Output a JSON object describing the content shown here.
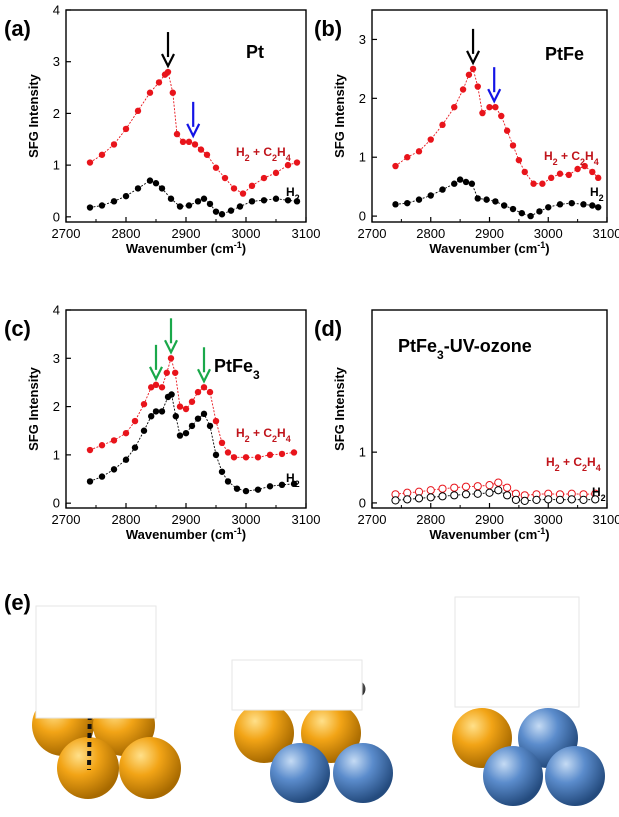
{
  "chart_data": [
    {
      "type": "line",
      "panel": "(a)",
      "sample_label": "Pt",
      "xlabel": "Wavenumber (cm",
      "xlabel_sup": "-1",
      "xlabel_end": ")",
      "ylabel": "SFG Intensity",
      "xlim": [
        2700,
        3100
      ],
      "ylim": [
        -0.1,
        4
      ],
      "xticks": [
        2700,
        2800,
        2900,
        3000,
        3100
      ],
      "yticks": [
        0,
        1,
        2,
        3,
        4
      ],
      "series": [
        {
          "name": "H2 + C2H4",
          "label_parts": [
            "H",
            "2",
            " + C",
            "2",
            "H",
            "4"
          ],
          "color": "#e8141b",
          "marker": "filled",
          "points": [
            [
              2740,
              1.05
            ],
            [
              2760,
              1.2
            ],
            [
              2780,
              1.4
            ],
            [
              2800,
              1.7
            ],
            [
              2820,
              2.05
            ],
            [
              2840,
              2.4
            ],
            [
              2855,
              2.6
            ],
            [
              2865,
              2.75
            ],
            [
              2870,
              2.8
            ],
            [
              2878,
              2.4
            ],
            [
              2885,
              1.6
            ],
            [
              2895,
              1.45
            ],
            [
              2905,
              1.45
            ],
            [
              2915,
              1.4
            ],
            [
              2925,
              1.3
            ],
            [
              2935,
              1.2
            ],
            [
              2950,
              0.95
            ],
            [
              2965,
              0.75
            ],
            [
              2980,
              0.55
            ],
            [
              2995,
              0.45
            ],
            [
              3010,
              0.6
            ],
            [
              3030,
              0.75
            ],
            [
              3050,
              0.85
            ],
            [
              3070,
              1.0
            ],
            [
              3085,
              1.05
            ]
          ]
        },
        {
          "name": "H2",
          "label_parts": [
            "H",
            "2"
          ],
          "color": "#000000",
          "marker": "filled",
          "points": [
            [
              2740,
              0.18
            ],
            [
              2760,
              0.22
            ],
            [
              2780,
              0.3
            ],
            [
              2800,
              0.4
            ],
            [
              2820,
              0.55
            ],
            [
              2840,
              0.7
            ],
            [
              2850,
              0.65
            ],
            [
              2860,
              0.55
            ],
            [
              2875,
              0.35
            ],
            [
              2890,
              0.2
            ],
            [
              2905,
              0.22
            ],
            [
              2920,
              0.3
            ],
            [
              2930,
              0.35
            ],
            [
              2940,
              0.25
            ],
            [
              2950,
              0.1
            ],
            [
              2960,
              0.05
            ],
            [
              2975,
              0.12
            ],
            [
              2990,
              0.2
            ],
            [
              3010,
              0.3
            ],
            [
              3030,
              0.32
            ],
            [
              3050,
              0.35
            ],
            [
              3070,
              0.32
            ],
            [
              3085,
              0.3
            ]
          ]
        }
      ],
      "arrows": [
        {
          "x": 2870,
          "y": 2.8,
          "color": "#000000"
        },
        {
          "x": 2912,
          "y": 1.45,
          "color": "#1414e6"
        }
      ]
    },
    {
      "type": "line",
      "panel": "(b)",
      "sample_label": "PtFe",
      "xlabel": "Wavenumber (cm",
      "xlabel_sup": "-1",
      "xlabel_end": ")",
      "ylabel": "SFG Intensity",
      "xlim": [
        2700,
        3100
      ],
      "ylim": [
        -0.1,
        3.5
      ],
      "xticks": [
        2700,
        2800,
        2900,
        3000,
        3100
      ],
      "yticks": [
        0,
        1,
        2,
        3
      ],
      "series": [
        {
          "name": "H2 + C2H4",
          "label_parts": [
            "H",
            "2",
            " + C",
            "2",
            "H",
            "4"
          ],
          "color": "#e8141b",
          "marker": "filled",
          "points": [
            [
              2740,
              0.85
            ],
            [
              2760,
              1.0
            ],
            [
              2780,
              1.1
            ],
            [
              2800,
              1.3
            ],
            [
              2820,
              1.55
            ],
            [
              2840,
              1.85
            ],
            [
              2855,
              2.15
            ],
            [
              2865,
              2.4
            ],
            [
              2872,
              2.5
            ],
            [
              2880,
              2.2
            ],
            [
              2888,
              1.75
            ],
            [
              2900,
              1.85
            ],
            [
              2910,
              1.85
            ],
            [
              2920,
              1.7
            ],
            [
              2930,
              1.45
            ],
            [
              2940,
              1.2
            ],
            [
              2950,
              0.95
            ],
            [
              2960,
              0.75
            ],
            [
              2975,
              0.55
            ],
            [
              2990,
              0.55
            ],
            [
              3005,
              0.65
            ],
            [
              3020,
              0.72
            ],
            [
              3035,
              0.7
            ],
            [
              3050,
              0.8
            ],
            [
              3062,
              0.85
            ],
            [
              3075,
              0.75
            ],
            [
              3085,
              0.65
            ]
          ]
        },
        {
          "name": "H2",
          "label_parts": [
            "H",
            "2"
          ],
          "color": "#000000",
          "marker": "filled",
          "points": [
            [
              2740,
              0.2
            ],
            [
              2760,
              0.22
            ],
            [
              2780,
              0.28
            ],
            [
              2800,
              0.35
            ],
            [
              2820,
              0.45
            ],
            [
              2840,
              0.55
            ],
            [
              2850,
              0.62
            ],
            [
              2860,
              0.58
            ],
            [
              2870,
              0.55
            ],
            [
              2880,
              0.3
            ],
            [
              2895,
              0.28
            ],
            [
              2910,
              0.25
            ],
            [
              2925,
              0.18
            ],
            [
              2940,
              0.12
            ],
            [
              2955,
              0.05
            ],
            [
              2970,
              0.0
            ],
            [
              2985,
              0.08
            ],
            [
              3000,
              0.15
            ],
            [
              3020,
              0.2
            ],
            [
              3040,
              0.22
            ],
            [
              3060,
              0.2
            ],
            [
              3075,
              0.18
            ],
            [
              3085,
              0.15
            ]
          ]
        }
      ],
      "arrows": [
        {
          "x": 2872,
          "y": 2.5,
          "color": "#000000"
        },
        {
          "x": 2908,
          "y": 1.85,
          "color": "#1414e6"
        }
      ]
    },
    {
      "type": "line",
      "panel": "(c)",
      "sample_label": "PtFe",
      "sample_sub": "3",
      "xlabel": "Wavenumber (cm",
      "xlabel_sup": "-1",
      "xlabel_end": ")",
      "ylabel": "SFG Intensity",
      "xlim": [
        2700,
        3100
      ],
      "ylim": [
        -0.1,
        4
      ],
      "xticks": [
        2700,
        2800,
        2900,
        3000,
        3100
      ],
      "yticks": [
        0,
        1,
        2,
        3,
        4
      ],
      "series": [
        {
          "name": "H2 + C2H4",
          "label_parts": [
            "H",
            "2",
            " + C",
            "2",
            "H",
            "4"
          ],
          "color": "#e8141b",
          "marker": "filled",
          "points": [
            [
              2740,
              1.1
            ],
            [
              2760,
              1.2
            ],
            [
              2780,
              1.3
            ],
            [
              2800,
              1.45
            ],
            [
              2815,
              1.7
            ],
            [
              2830,
              2.05
            ],
            [
              2842,
              2.4
            ],
            [
              2850,
              2.45
            ],
            [
              2860,
              2.4
            ],
            [
              2868,
              2.7
            ],
            [
              2875,
              3.0
            ],
            [
              2882,
              2.7
            ],
            [
              2890,
              2.0
            ],
            [
              2900,
              1.95
            ],
            [
              2910,
              2.1
            ],
            [
              2920,
              2.3
            ],
            [
              2930,
              2.4
            ],
            [
              2940,
              2.3
            ],
            [
              2950,
              1.7
            ],
            [
              2960,
              1.25
            ],
            [
              2970,
              1.05
            ],
            [
              2980,
              0.95
            ],
            [
              3000,
              0.95
            ],
            [
              3020,
              0.95
            ],
            [
              3040,
              1.0
            ],
            [
              3060,
              1.02
            ],
            [
              3080,
              1.05
            ]
          ]
        },
        {
          "name": "H2",
          "label_parts": [
            "H",
            "2"
          ],
          "color": "#000000",
          "marker": "filled",
          "points": [
            [
              2740,
              0.45
            ],
            [
              2760,
              0.55
            ],
            [
              2780,
              0.7
            ],
            [
              2800,
              0.9
            ],
            [
              2815,
              1.15
            ],
            [
              2830,
              1.5
            ],
            [
              2842,
              1.8
            ],
            [
              2850,
              1.9
            ],
            [
              2860,
              1.9
            ],
            [
              2870,
              2.2
            ],
            [
              2876,
              2.25
            ],
            [
              2883,
              1.8
            ],
            [
              2890,
              1.4
            ],
            [
              2900,
              1.45
            ],
            [
              2910,
              1.6
            ],
            [
              2920,
              1.75
            ],
            [
              2930,
              1.85
            ],
            [
              2940,
              1.6
            ],
            [
              2950,
              1.0
            ],
            [
              2960,
              0.65
            ],
            [
              2970,
              0.45
            ],
            [
              2985,
              0.3
            ],
            [
              3000,
              0.25
            ],
            [
              3020,
              0.28
            ],
            [
              3040,
              0.35
            ],
            [
              3060,
              0.38
            ],
            [
              3080,
              0.4
            ]
          ]
        }
      ],
      "arrows": [
        {
          "x": 2850,
          "y": 2.45,
          "color": "#1aa84a"
        },
        {
          "x": 2875,
          "y": 3.0,
          "color": "#1aa84a"
        },
        {
          "x": 2930,
          "y": 2.4,
          "color": "#1aa84a"
        }
      ]
    },
    {
      "type": "line",
      "panel": "(d)",
      "sample_label": "PtFe",
      "sample_sub": "3",
      "sample_rest": "-UV-ozone",
      "xlabel": "Wavenumber (cm",
      "xlabel_sup": "-1",
      "xlabel_end": ")",
      "ylabel": "SFG Intensity",
      "xlim": [
        2700,
        3100
      ],
      "ylim": [
        -0.1,
        3.8
      ],
      "xticks": [
        2700,
        2800,
        2900,
        3000,
        3100
      ],
      "yticks": [
        0,
        1
      ],
      "series": [
        {
          "name": "H2 + C2H4",
          "label_parts": [
            "H",
            "2",
            " + C",
            "2",
            "H",
            "4"
          ],
          "color": "#e8141b",
          "marker": "open",
          "points": [
            [
              2740,
              0.17
            ],
            [
              2760,
              0.2
            ],
            [
              2780,
              0.22
            ],
            [
              2800,
              0.25
            ],
            [
              2820,
              0.28
            ],
            [
              2840,
              0.3
            ],
            [
              2860,
              0.32
            ],
            [
              2880,
              0.33
            ],
            [
              2900,
              0.35
            ],
            [
              2915,
              0.4
            ],
            [
              2930,
              0.3
            ],
            [
              2945,
              0.18
            ],
            [
              2960,
              0.15
            ],
            [
              2980,
              0.17
            ],
            [
              3000,
              0.18
            ],
            [
              3020,
              0.17
            ],
            [
              3040,
              0.18
            ],
            [
              3060,
              0.17
            ],
            [
              3080,
              0.18
            ]
          ]
        },
        {
          "name": "H2",
          "label_parts": [
            "H",
            "2"
          ],
          "color": "#000000",
          "marker": "open",
          "points": [
            [
              2740,
              0.05
            ],
            [
              2760,
              0.07
            ],
            [
              2780,
              0.09
            ],
            [
              2800,
              0.11
            ],
            [
              2820,
              0.13
            ],
            [
              2840,
              0.15
            ],
            [
              2860,
              0.17
            ],
            [
              2880,
              0.18
            ],
            [
              2900,
              0.2
            ],
            [
              2915,
              0.25
            ],
            [
              2930,
              0.15
            ],
            [
              2945,
              0.06
            ],
            [
              2960,
              0.04
            ],
            [
              2980,
              0.06
            ],
            [
              3000,
              0.07
            ],
            [
              3020,
              0.06
            ],
            [
              3040,
              0.07
            ],
            [
              3060,
              0.06
            ],
            [
              3080,
              0.07
            ]
          ]
        }
      ],
      "arrows": []
    }
  ],
  "panel_e": {
    "letter": "(e)",
    "colors": {
      "gold": "#f2a416",
      "blue": "#5b8ccc",
      "carbon": "#e01212",
      "hydrogen": "#6e6e6e",
      "bond": "#cc1111"
    }
  }
}
